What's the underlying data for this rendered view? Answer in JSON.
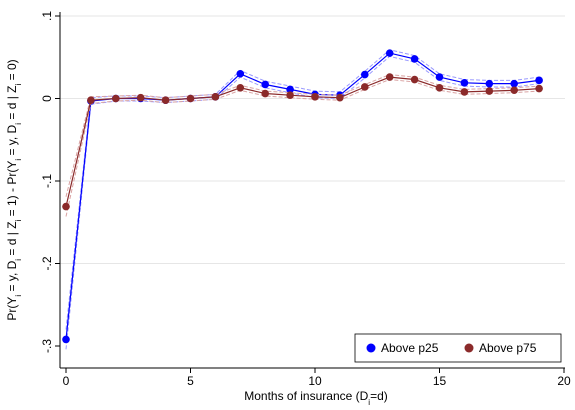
{
  "chart_data": {
    "type": "line",
    "title": "",
    "xlabel": "Months of insurance (D",
    "xlabel_sub": "i",
    "xlabel_tail": "=d)",
    "ylabel_parts": [
      "Pr(Y",
      "i",
      " = y, D",
      "i",
      " = d | Z",
      "i",
      " = 1) - Pr(Y",
      "i",
      " = y, D",
      "i",
      " = d | Z",
      "i",
      " = 0)"
    ],
    "xlim": [
      0,
      20
    ],
    "ylim": [
      -0.3,
      0.1
    ],
    "x_ticks": [
      0,
      5,
      10,
      15,
      20
    ],
    "x_tick_labels": [
      "0",
      "5",
      "10",
      "15",
      "20"
    ],
    "y_ticks": [
      -0.3,
      -0.2,
      -0.1,
      0,
      0.1
    ],
    "y_tick_labels": [
      "-.3",
      "-.2",
      "-.1",
      "0",
      ".1"
    ],
    "grid": "horizontal",
    "legend_position": "bottom-right",
    "x": [
      0,
      1,
      2,
      3,
      4,
      5,
      6,
      7,
      8,
      9,
      10,
      11,
      12,
      13,
      14,
      15,
      16,
      17,
      18,
      19
    ],
    "series": [
      {
        "name": "Above p25",
        "color": "#0000ff",
        "ci_color": "#9999ff",
        "values": [
          -0.292,
          -0.003,
          0.0,
          0.0,
          -0.002,
          0.0,
          0.002,
          0.03,
          0.017,
          0.011,
          0.005,
          0.004,
          0.029,
          0.055,
          0.048,
          0.026,
          0.019,
          0.018,
          0.018,
          0.022
        ],
        "ci_half_width": [
          0.012,
          0.004,
          0.003,
          0.003,
          0.003,
          0.003,
          0.003,
          0.004,
          0.004,
          0.004,
          0.004,
          0.004,
          0.004,
          0.004,
          0.004,
          0.004,
          0.004,
          0.004,
          0.004,
          0.004
        ]
      },
      {
        "name": "Above p75",
        "color": "#8b2a2a",
        "ci_color": "#d9a3a3",
        "values": [
          -0.131,
          -0.002,
          0.0,
          0.001,
          -0.002,
          0.0,
          0.002,
          0.013,
          0.006,
          0.004,
          0.002,
          0.001,
          0.014,
          0.026,
          0.023,
          0.013,
          0.008,
          0.009,
          0.01,
          0.012
        ],
        "ci_half_width": [
          0.012,
          0.004,
          0.003,
          0.003,
          0.003,
          0.003,
          0.003,
          0.003,
          0.003,
          0.003,
          0.003,
          0.003,
          0.003,
          0.003,
          0.003,
          0.003,
          0.003,
          0.003,
          0.003,
          0.003
        ]
      }
    ]
  }
}
